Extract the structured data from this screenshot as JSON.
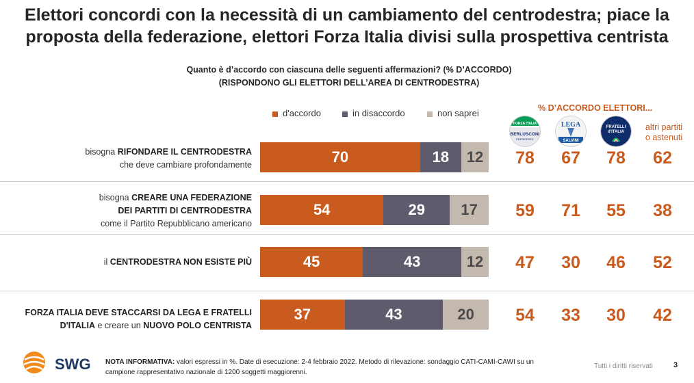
{
  "title_line1": "Elettori concordi con la necessità di un cambiamento del centrodestra; piace la",
  "title_line2": "proposta della federazione, elettori Forza Italia divisi sulla prospettiva centrista",
  "subtitle_line1": "Quanto è d’accordo con ciascuna delle seguenti affermazioni? (% D’ACCORDO)",
  "subtitle_line2": "(RISPONDONO GLI ELETTORI DELL’AREA DI CENTRODESTRA)",
  "legend": [
    {
      "label": "d'accordo",
      "color": "#c95b1e"
    },
    {
      "label": "in disaccordo",
      "color": "#5f5b6c"
    },
    {
      "label": "non saprei",
      "color": "#c4b9af"
    }
  ],
  "party_header": "% D’ACCORDO ELETTORI...",
  "parties": [
    {
      "name": "Forza Italia",
      "logo_text": "BERLUSCONI"
    },
    {
      "name": "Lega",
      "logo_text": "SALVINI"
    },
    {
      "name": "Fratelli d'Italia",
      "logo_text": "FRATELLI D'ITALIA"
    },
    {
      "name": "altri partiti o astenuti"
    }
  ],
  "altri_line1": "altri partiti",
  "altri_line2": "o astenuti",
  "logos": {
    "fi_top": "FORZA ITALIA",
    "fi_main": "BERLUSCONI",
    "fi_sub": "PRESIDENTE",
    "lega_top": "LEGA",
    "lega_main": "SALVINI",
    "fdi_line1": "FRATELLI",
    "fdi_line2": "d'ITALIA"
  },
  "rows": [
    {
      "l1a": "bisogna ",
      "l1b": "RIFONDARE IL CENTRODESTRA",
      "l2": "che deve cambiare profondamente"
    },
    {
      "l1a": "bisogna ",
      "l1b": "CREARE UNA FEDERAZIONE",
      "l2b": "DEI PARTITI DI CENTRODESTRA",
      "l3": "come il Partito Repubblicano americano"
    },
    {
      "l1a": "il ",
      "l1b": "CENTRODESTRA NON ESISTE PIÙ"
    },
    {
      "l1b": "FORZA ITALIA DEVE STACCARSI DA LEGA E FRATELLI",
      "l2b": "D'ITALIA",
      "l2c": " e creare un ",
      "l2d": "NUOVO POLO CENTRISTA"
    }
  ],
  "chart_data": {
    "type": "bar",
    "orientation": "horizontal-stacked",
    "title": "Quanto è d’accordo con ciascuna delle seguenti affermazioni? (% D’ACCORDO)",
    "categories": [
      "bisogna RIFONDARE IL CENTRODESTRA che deve cambiare profondamente",
      "bisogna CREARE UNA FEDERAZIONE DEI PARTITI DI CENTRODESTRA come il Partito Repubblicano americano",
      "il CENTRODESTRA NON ESISTE PIÙ",
      "FORZA ITALIA DEVE STACCARSI DA LEGA E FRATELLI D'ITALIA e creare un NUOVO POLO CENTRISTA"
    ],
    "series": [
      {
        "name": "d'accordo",
        "values": [
          70,
          54,
          45,
          37
        ]
      },
      {
        "name": "in disaccordo",
        "values": [
          18,
          29,
          43,
          43
        ]
      },
      {
        "name": "non saprei",
        "values": [
          12,
          17,
          12,
          20
        ]
      }
    ],
    "party_agreement": {
      "columns": [
        "Forza Italia",
        "Lega",
        "Fratelli d'Italia",
        "altri partiti o astenuti"
      ],
      "values": [
        [
          78,
          67,
          78,
          62
        ],
        [
          59,
          71,
          55,
          38
        ],
        [
          47,
          30,
          46,
          52
        ],
        [
          54,
          33,
          30,
          42
        ]
      ]
    },
    "xlim": [
      0,
      100
    ]
  },
  "footer": {
    "brand": "SWG",
    "note_bold": "NOTA INFORMATIVA:",
    "note_text": " valori espressi in %. Date di esecuzione: 2-4 febbraio 2022. Metodo di rilevazione: sondaggio CATI-CAMI-CAWI su un campione rappresentativo nazionale di 1200 soggetti maggiorenni.",
    "rights": "Tutti i diritti riservati",
    "page": "3"
  }
}
